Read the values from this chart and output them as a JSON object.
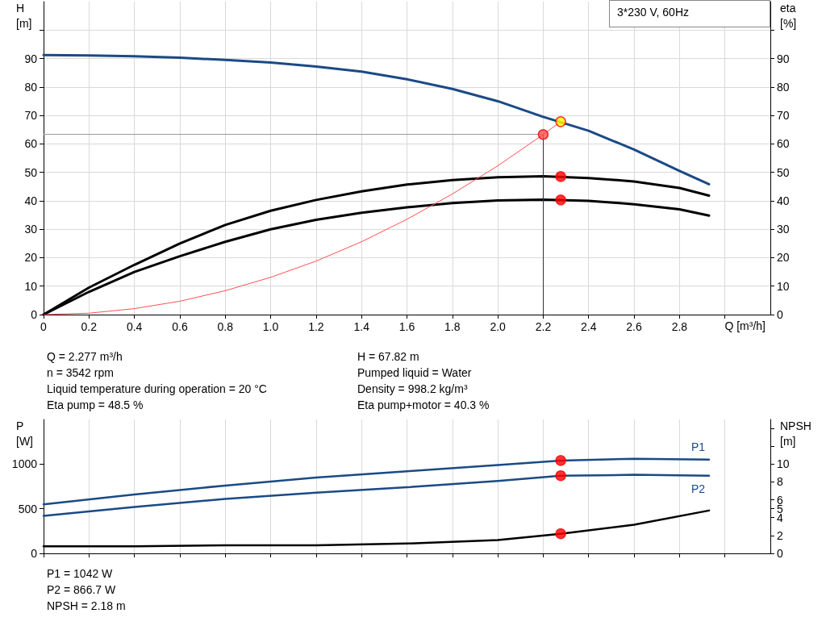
{
  "chart_data": [
    {
      "type": "line",
      "title": "3*230 V, 60Hz",
      "xlabel": "Q [m³/h]",
      "ylabel": "H\n[m]",
      "y2label": "eta\n[%]",
      "xlim": [
        0,
        3.2
      ],
      "xticks": [
        0,
        0.2,
        0.4,
        0.6,
        0.8,
        {
          "value": 1,
          "label": "1.0"
        },
        1.2,
        1.4,
        1.6,
        1.8,
        {
          "value": 2,
          "label": "2.0"
        },
        2.2,
        2.4,
        2.6,
        2.8,
        {
          "value": 3,
          "label": null
        }
      ],
      "ylim": [
        0,
        110
      ],
      "yticks": [
        0,
        10,
        20,
        30,
        40,
        50,
        60,
        70,
        80,
        90,
        {
          "value": 100,
          "label": null
        }
      ],
      "y2lim": [
        0,
        110
      ],
      "y2ticks": [
        0,
        10,
        20,
        30,
        40,
        50,
        60,
        70,
        80,
        90,
        {
          "value": 100,
          "label": null
        }
      ],
      "grid": true,
      "legend": false,
      "ref_lines": [
        {
          "axis": "y",
          "value": 63.3,
          "color": "#999999"
        },
        {
          "axis": "x",
          "value": 2.2,
          "color": "#333333"
        }
      ],
      "series": [
        {
          "type": "line",
          "color": "#1a4a85",
          "x": [
            0,
            0.2,
            0.4,
            0.6,
            0.8,
            1.0,
            1.2,
            1.4,
            1.6,
            1.8,
            2.0,
            2.2,
            2.4,
            2.6,
            2.8,
            2.93
          ],
          "values": [
            91.2,
            91.1,
            90.8,
            90.3,
            89.5,
            88.6,
            87.2,
            85.4,
            82.7,
            79.3,
            75.0,
            69.5,
            64.6,
            58.0,
            50.5,
            45.8
          ]
        },
        {
          "type": "line",
          "axis": "y2",
          "color": "#000000",
          "x": [
            0,
            0.2,
            0.4,
            0.6,
            0.8,
            1.0,
            1.2,
            1.4,
            1.6,
            1.8,
            2.0,
            2.2,
            2.4,
            2.6,
            2.8,
            2.93
          ],
          "values": [
            0,
            9.5,
            17.5,
            25,
            31.5,
            36.5,
            40.3,
            43.3,
            45.7,
            47.3,
            48.3,
            48.6,
            48.0,
            46.8,
            44.5,
            41.8
          ]
        },
        {
          "type": "line",
          "axis": "y2",
          "color": "#000000",
          "x": [
            0,
            0.2,
            0.4,
            0.6,
            0.8,
            1.0,
            1.2,
            1.4,
            1.6,
            1.8,
            2.0,
            2.2,
            2.4,
            2.6,
            2.8,
            2.93
          ],
          "values": [
            0,
            8,
            15,
            20.5,
            25.6,
            30,
            33.3,
            35.8,
            37.7,
            39.2,
            40.1,
            40.4,
            40,
            38.8,
            37,
            34.8
          ]
        },
        {
          "type": "line",
          "color": "#ff5050",
          "x": [
            0,
            0.2,
            0.4,
            0.6,
            0.8,
            1.0,
            1.2,
            1.4,
            1.6,
            1.8,
            2.0,
            2.2,
            2.277
          ],
          "values": [
            0,
            0.5,
            2.1,
            4.7,
            8.4,
            13.1,
            18.8,
            25.6,
            33.5,
            42.4,
            52.3,
            63.3,
            67.8
          ]
        },
        {
          "type": "scatter",
          "color": "#ff5050",
          "x": [
            2.2
          ],
          "values": [
            63.3
          ]
        },
        {
          "type": "scatter",
          "color": "#ffff00",
          "x": [
            2.277
          ],
          "values": [
            67.8
          ]
        },
        {
          "type": "scatter",
          "axis": "y2",
          "color": "#ff0000",
          "x": [
            2.277,
            2.277
          ],
          "values": [
            48.5,
            40.3
          ]
        }
      ],
      "annotations": [
        "Q = 2.277 m³/h",
        "n = 3542 rpm",
        "Liquid temperature during operation = 20 °C",
        "Eta pump = 48.5 %",
        "H = 67.82 m",
        "Pumped liquid = Water",
        "Density = 998.2 kg/m³",
        "Eta pump+motor = 40.3 %"
      ]
    },
    {
      "type": "line",
      "ylabel": "P\n[W]",
      "y2label": "NPSH\n[m]",
      "xlim": [
        0,
        3.2
      ],
      "xticks": [
        0,
        0.2,
        0.4,
        0.6,
        0.8,
        1.0,
        1.2,
        1.4,
        1.6,
        1.8,
        2.0,
        2.2,
        2.4,
        2.6,
        2.8,
        3.0
      ],
      "ylim": [
        0,
        1500
      ],
      "yticks": [
        0,
        500,
        1000
      ],
      "y2lim": [
        0,
        15
      ],
      "y2ticks": [
        0,
        2,
        4,
        5,
        6,
        8,
        10,
        {
          "value": 12,
          "label": null
        },
        {
          "value": 14,
          "label": null
        }
      ],
      "grid": "x",
      "legend": false,
      "tick_labels": "y",
      "series": [
        {
          "type": "line",
          "name": "P1",
          "color": "#1a4a85",
          "x": [
            0,
            0.4,
            0.8,
            1.2,
            1.6,
            2.0,
            2.277,
            2.6,
            2.93
          ],
          "values": [
            550,
            660,
            760,
            850,
            920,
            990,
            1040,
            1060,
            1050
          ]
        },
        {
          "type": "line",
          "name": "P2",
          "color": "#1a4a85",
          "x": [
            0,
            0.4,
            0.8,
            1.2,
            1.6,
            2.0,
            2.277,
            2.6,
            2.93
          ],
          "values": [
            420,
            520,
            610,
            680,
            740,
            810,
            870,
            880,
            870
          ]
        },
        {
          "type": "line",
          "axis": "y2",
          "color": "#000000",
          "x": [
            0,
            0.4,
            0.8,
            1.2,
            1.6,
            2.0,
            2.277,
            2.6,
            2.93
          ],
          "values": [
            0.8,
            0.8,
            0.9,
            0.9,
            1.1,
            1.5,
            2.2,
            3.2,
            4.8
          ]
        },
        {
          "type": "scatter",
          "color": "#ff0000",
          "x": [
            2.277,
            2.277
          ],
          "values": [
            1040,
            870
          ]
        },
        {
          "type": "scatter",
          "axis": "y2",
          "color": "#ff0000",
          "x": [
            2.277
          ],
          "values": [
            2.2
          ]
        }
      ],
      "annotations": [
        "P1 = 1042 W",
        "P2 = 866.7 W",
        "NPSH = 2.18 m"
      ]
    }
  ]
}
